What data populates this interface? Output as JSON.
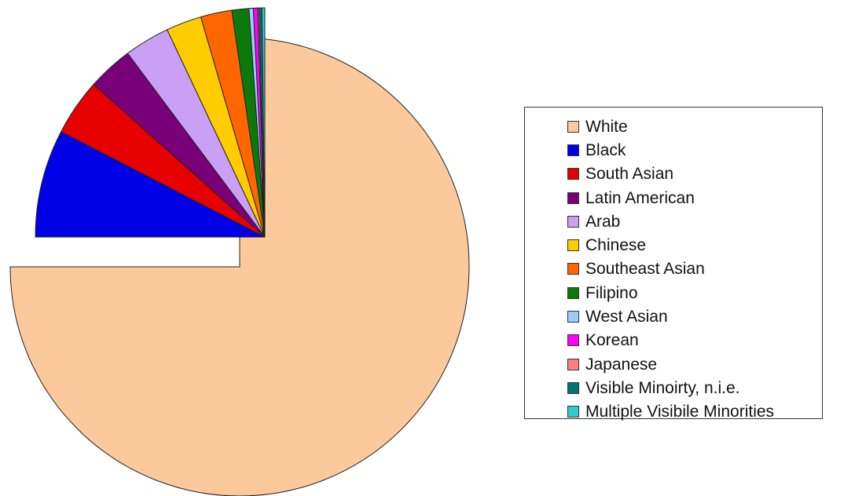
{
  "chart_data": {
    "type": "pie",
    "title": "",
    "legend_position": "right",
    "start_angle_deg": 0,
    "direction": "clockwise",
    "exploded_slices": [
      "Black",
      "South Asian",
      "Latin American",
      "Arab",
      "Chinese",
      "Southeast Asian",
      "Filipino",
      "West Asian",
      "Korean",
      "Japanese",
      "Visible Minoirty, n.i.e.",
      "Multiple Visibile Minorities"
    ],
    "categories": [
      "White",
      "Black",
      "South Asian",
      "Latin American",
      "Arab",
      "Chinese",
      "Southeast Asian",
      "Filipino",
      "West Asian",
      "Korean",
      "Japanese",
      "Visible Minoirty, n.i.e.",
      "Multiple Visibile Minorities"
    ],
    "values": [
      75.0,
      7.6,
      4.0,
      3.2,
      3.2,
      2.5,
      2.2,
      1.2,
      0.3,
      0.3,
      0.1,
      0.2,
      0.2
    ],
    "colors": [
      "#fcc99c",
      "#0000e6",
      "#e60000",
      "#7a007a",
      "#c9a0f5",
      "#ffcc00",
      "#ff6600",
      "#0b7a0b",
      "#99ccff",
      "#ff00ff",
      "#ff8080",
      "#007373",
      "#33cccc"
    ]
  }
}
